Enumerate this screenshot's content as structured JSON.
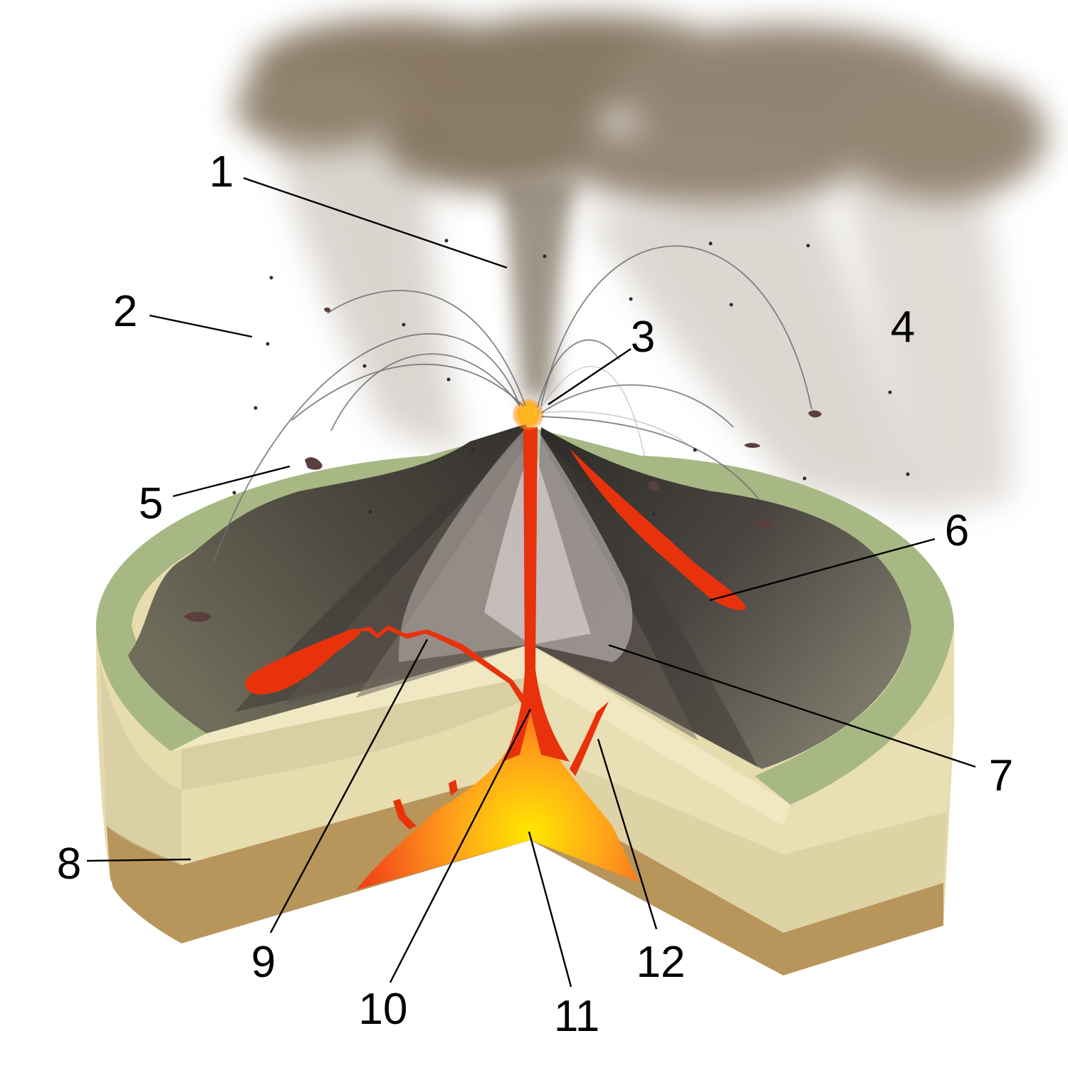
{
  "diagram": {
    "subject": "Peléan volcanic eruption cross-section",
    "labels": [
      {
        "id": "1",
        "text": "1"
      },
      {
        "id": "2",
        "text": "2"
      },
      {
        "id": "3",
        "text": "3"
      },
      {
        "id": "4",
        "text": "4"
      },
      {
        "id": "5",
        "text": "5"
      },
      {
        "id": "6",
        "text": "6"
      },
      {
        "id": "7",
        "text": "7"
      },
      {
        "id": "8",
        "text": "8"
      },
      {
        "id": "9",
        "text": "9"
      },
      {
        "id": "10",
        "text": "10"
      },
      {
        "id": "11",
        "text": "11"
      },
      {
        "id": "12",
        "text": "12"
      }
    ]
  },
  "colors": {
    "ash": "#7a6a55",
    "lava": "#e8320c",
    "magma_core": "#ffe000",
    "grass": "#a7b884",
    "sand": "#e6dcae",
    "soil": "#b8955a"
  }
}
